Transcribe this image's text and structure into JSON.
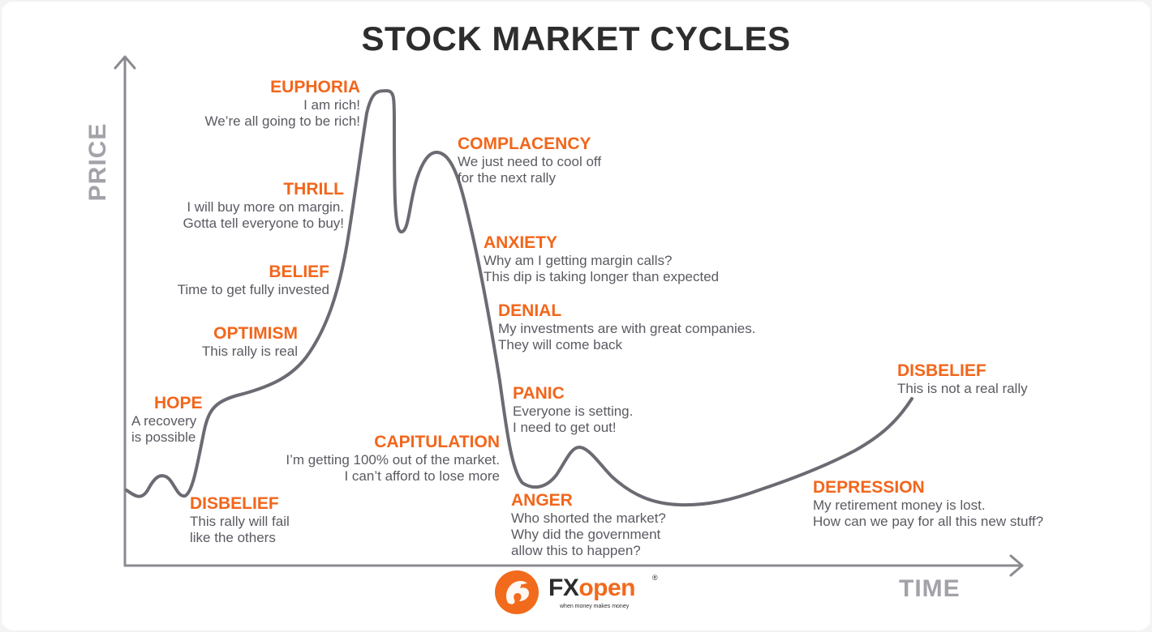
{
  "title": "STOCK MARKET CYCLES",
  "axes": {
    "y_label": "PRICE",
    "x_label": "TIME"
  },
  "colors": {
    "heading": "#f2661b",
    "body_text": "#5a5a62",
    "curve": "#6b6b73",
    "axis": "#8a8a90",
    "title": "#2d2d2d"
  },
  "stages": [
    {
      "name": "DISBELIEF",
      "lines": [
        "This rally will fail",
        "like the others"
      ]
    },
    {
      "name": "HOPE",
      "lines": [
        "A recovery",
        "is possible"
      ]
    },
    {
      "name": "OPTIMISM",
      "lines": [
        "This rally is real"
      ]
    },
    {
      "name": "BELIEF",
      "lines": [
        "Time to get fully invested"
      ]
    },
    {
      "name": "THRILL",
      "lines": [
        "I will buy more on margin.",
        "Gotta tell everyone to buy!"
      ]
    },
    {
      "name": "EUPHORIA",
      "lines": [
        "I am rich!",
        "We’re all going to be rich!"
      ]
    },
    {
      "name": "COMPLACENCY",
      "lines": [
        "We just need to cool off",
        "for the next rally"
      ]
    },
    {
      "name": "ANXIETY",
      "lines": [
        "Why am I getting margin calls?",
        "This dip is taking longer than expected"
      ]
    },
    {
      "name": "DENIAL",
      "lines": [
        "My investments are with great companies.",
        "They will come back"
      ]
    },
    {
      "name": "PANIC",
      "lines": [
        "Everyone is setting.",
        "I need to get out!"
      ]
    },
    {
      "name": "CAPITULATION",
      "lines": [
        "I’m getting 100% out of the market.",
        "I can’t afford to lose more"
      ]
    },
    {
      "name": "ANGER",
      "lines": [
        "Who shorted the market?",
        "Why did the government",
        "allow this to happen?"
      ]
    },
    {
      "name": "DEPRESSION",
      "lines": [
        "My retirement money is lost.",
        "How can we pay for all this new stuff?"
      ]
    },
    {
      "name": "DISBELIEF",
      "lines": [
        "This is not a real rally"
      ]
    }
  ],
  "logo": {
    "brand_fx": "FX",
    "brand_open": "open",
    "registered": "®",
    "tagline": "when money makes money"
  }
}
